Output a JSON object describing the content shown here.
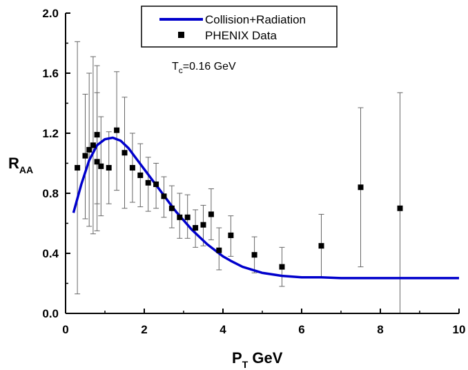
{
  "chart_data": {
    "type": "scatter",
    "xlabel_main": "P",
    "xlabel_sub": "T",
    "xlabel_rest": " GeV",
    "ylabel_main": "R",
    "ylabel_sub": "AA",
    "xlim": [
      0,
      10
    ],
    "ylim": [
      0,
      2.0
    ],
    "x_ticks": [
      0,
      2,
      4,
      6,
      8,
      10
    ],
    "x_tick_labels": [
      "0",
      "2",
      "4",
      "6",
      "8",
      "10"
    ],
    "y_ticks": [
      0.0,
      0.4,
      0.8,
      1.2,
      1.6,
      2.0
    ],
    "y_tick_labels": [
      "0.0",
      "0.4",
      "0.8",
      "1.2",
      "1.6",
      "2.0"
    ],
    "grid": false,
    "legend_position": "top-center",
    "annotation": {
      "main": "T",
      "sub": "c",
      "rest": "=0.16 GeV"
    },
    "series": [
      {
        "name": "Collision+Radiation",
        "kind": "line",
        "color": "#0000cc",
        "x": [
          0.2,
          0.4,
          0.6,
          0.8,
          1.0,
          1.2,
          1.4,
          1.6,
          1.8,
          2.0,
          2.2,
          2.4,
          2.6,
          2.8,
          3.0,
          3.2,
          3.4,
          3.6,
          3.8,
          4.0,
          4.2,
          4.5,
          5.0,
          5.5,
          6.0,
          6.5,
          7.0,
          8.0,
          9.0,
          10.0
        ],
        "y": [
          0.67,
          0.86,
          1.02,
          1.12,
          1.16,
          1.17,
          1.15,
          1.1,
          1.03,
          0.96,
          0.89,
          0.82,
          0.75,
          0.68,
          0.62,
          0.56,
          0.51,
          0.46,
          0.42,
          0.38,
          0.35,
          0.31,
          0.27,
          0.25,
          0.24,
          0.24,
          0.235,
          0.235,
          0.235,
          0.235
        ]
      },
      {
        "name": "PHENIX Data",
        "kind": "scatter",
        "color": "#000000",
        "points": [
          {
            "x": 0.3,
            "y": 0.97,
            "lo": 0.13,
            "hi": 1.81
          },
          {
            "x": 0.5,
            "y": 1.05,
            "lo": 0.63,
            "hi": 1.46
          },
          {
            "x": 0.6,
            "y": 1.09,
            "lo": 0.58,
            "hi": 1.6
          },
          {
            "x": 0.7,
            "y": 1.12,
            "lo": 0.53,
            "hi": 1.71
          },
          {
            "x": 0.8,
            "y": 1.01,
            "lo": 0.55,
            "hi": 1.47
          },
          {
            "x": 0.8,
            "y": 1.19,
            "lo": 0.73,
            "hi": 1.65
          },
          {
            "x": 0.9,
            "y": 0.98,
            "lo": 0.65,
            "hi": 1.31
          },
          {
            "x": 1.1,
            "y": 0.97,
            "lo": 0.73,
            "hi": 1.21
          },
          {
            "x": 1.3,
            "y": 1.22,
            "lo": 0.82,
            "hi": 1.61
          },
          {
            "x": 1.5,
            "y": 1.07,
            "lo": 0.7,
            "hi": 1.44
          },
          {
            "x": 1.7,
            "y": 0.97,
            "lo": 0.74,
            "hi": 1.2
          },
          {
            "x": 1.9,
            "y": 0.92,
            "lo": 0.71,
            "hi": 1.13
          },
          {
            "x": 2.1,
            "y": 0.87,
            "lo": 0.68,
            "hi": 1.04
          },
          {
            "x": 2.3,
            "y": 0.86,
            "lo": 0.7,
            "hi": 1.0
          },
          {
            "x": 2.5,
            "y": 0.78,
            "lo": 0.64,
            "hi": 0.91
          },
          {
            "x": 2.7,
            "y": 0.7,
            "lo": 0.57,
            "hi": 0.85
          },
          {
            "x": 2.9,
            "y": 0.64,
            "lo": 0.5,
            "hi": 0.8
          },
          {
            "x": 3.1,
            "y": 0.64,
            "lo": 0.5,
            "hi": 0.79
          },
          {
            "x": 3.3,
            "y": 0.57,
            "lo": 0.44,
            "hi": 0.69
          },
          {
            "x": 3.5,
            "y": 0.59,
            "lo": 0.45,
            "hi": 0.72
          },
          {
            "x": 3.7,
            "y": 0.66,
            "lo": 0.49,
            "hi": 0.83
          },
          {
            "x": 3.9,
            "y": 0.42,
            "lo": 0.29,
            "hi": 0.57
          },
          {
            "x": 4.2,
            "y": 0.52,
            "lo": 0.38,
            "hi": 0.65
          },
          {
            "x": 4.8,
            "y": 0.39,
            "lo": 0.27,
            "hi": 0.51
          },
          {
            "x": 5.5,
            "y": 0.31,
            "lo": 0.18,
            "hi": 0.44
          },
          {
            "x": 6.5,
            "y": 0.45,
            "lo": 0.24,
            "hi": 0.66
          },
          {
            "x": 7.5,
            "y": 0.84,
            "lo": 0.31,
            "hi": 1.37
          },
          {
            "x": 8.5,
            "y": 0.7,
            "lo": 0.0,
            "hi": 1.47
          }
        ]
      }
    ]
  }
}
